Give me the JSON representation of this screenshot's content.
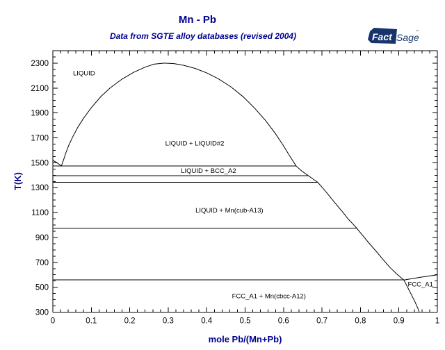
{
  "header": {
    "title": "Mn - Pb",
    "subtitle": "Data from SGTE alloy databases (revised 2004)",
    "logo": {
      "fact": "Fact",
      "sage": "Sage",
      "tm": "″"
    }
  },
  "colors": {
    "heading_navy": "#000090",
    "logo_navy": "#17356d",
    "plot_line": "#000000",
    "tick_text": "#000000",
    "region_text": "#000000"
  },
  "chart_data": {
    "type": "line",
    "title": "Mn - Pb",
    "subtitle": "Data from SGTE alloy databases (revised 2004)",
    "xlabel": "mole Pb/(Mn+Pb)",
    "ylabel": "T(K)",
    "xlim": [
      0,
      1
    ],
    "ylim": [
      300,
      2400
    ],
    "grid": false,
    "legend": "none",
    "x_ticks": {
      "major": [
        0,
        0.1,
        0.2,
        0.3,
        0.4,
        0.5,
        0.6,
        0.7,
        0.8,
        0.9,
        1
      ],
      "labels": [
        "0",
        "0.1",
        "0.2",
        "0.3",
        "0.4",
        "0.5",
        "0.6",
        "0.7",
        "0.8",
        "0.9",
        "1"
      ],
      "minor_step": 0.02
    },
    "y_ticks": {
      "major": [
        300,
        500,
        700,
        900,
        1100,
        1300,
        1500,
        1700,
        1900,
        2100,
        2300
      ],
      "labels": [
        "300",
        "500",
        "700",
        "900",
        "1100",
        "1300",
        "1500",
        "1700",
        "1900",
        "2100",
        "2300"
      ],
      "minor_step": 50
    },
    "isotherms": [
      {
        "name": "monotectic-1473K",
        "T": 1473,
        "x1": 0,
        "x2": 0.633
      },
      {
        "name": "bcc-fcc-1397K",
        "T": 1397,
        "x1": 0,
        "x2": 0.664
      },
      {
        "name": "fcc-cubA13-1343K",
        "T": 1343,
        "x1": 0,
        "x2": 0.689
      },
      {
        "name": "cubA13-cbccA12-975K",
        "T": 975,
        "x1": 0,
        "x2": 0.79
      },
      {
        "name": "eutectic-558K",
        "T": 558,
        "x1": 0,
        "x2": 0.913
      }
    ],
    "boundaries": [
      {
        "name": "mn-liquidus",
        "points": [
          [
            0,
            1519
          ],
          [
            0.008,
            1506
          ],
          [
            0.015,
            1491
          ],
          [
            0.022,
            1473
          ]
        ]
      },
      {
        "name": "miscibility-gap-and-liquidus",
        "points": [
          [
            0.022,
            1473
          ],
          [
            0.028,
            1525
          ],
          [
            0.034,
            1580
          ],
          [
            0.042,
            1645
          ],
          [
            0.052,
            1710
          ],
          [
            0.065,
            1785
          ],
          [
            0.08,
            1858
          ],
          [
            0.1,
            1942
          ],
          [
            0.125,
            2032
          ],
          [
            0.15,
            2103
          ],
          [
            0.18,
            2172
          ],
          [
            0.21,
            2226
          ],
          [
            0.24,
            2268
          ],
          [
            0.263,
            2292
          ],
          [
            0.29,
            2300
          ],
          [
            0.315,
            2296
          ],
          [
            0.34,
            2283
          ],
          [
            0.37,
            2258
          ],
          [
            0.4,
            2222
          ],
          [
            0.43,
            2175
          ],
          [
            0.462,
            2112
          ],
          [
            0.495,
            2030
          ],
          [
            0.525,
            1938
          ],
          [
            0.553,
            1840
          ],
          [
            0.578,
            1738
          ],
          [
            0.598,
            1645
          ],
          [
            0.615,
            1560
          ],
          [
            0.633,
            1473
          ],
          [
            0.648,
            1432
          ],
          [
            0.664,
            1397
          ],
          [
            0.677,
            1368
          ],
          [
            0.689,
            1343
          ],
          [
            0.701,
            1300
          ],
          [
            0.713,
            1256
          ],
          [
            0.727,
            1203
          ],
          [
            0.741,
            1150
          ],
          [
            0.755,
            1100
          ],
          [
            0.768,
            1048
          ],
          [
            0.78,
            1010
          ],
          [
            0.79,
            975
          ],
          [
            0.806,
            915
          ],
          [
            0.823,
            852
          ],
          [
            0.841,
            788
          ],
          [
            0.859,
            722
          ],
          [
            0.877,
            658
          ],
          [
            0.896,
            602
          ],
          [
            0.913,
            558
          ]
        ]
      },
      {
        "name": "pb-liquidus",
        "points": [
          [
            0.913,
            558
          ],
          [
            0.956,
            580
          ],
          [
            1.0,
            600
          ]
        ]
      },
      {
        "name": "fcc-a1-solvus",
        "points": [
          [
            0.913,
            558
          ],
          [
            0.923,
            498
          ],
          [
            0.933,
            438
          ],
          [
            0.942,
            382
          ],
          [
            0.95,
            325
          ],
          [
            0.953,
            300
          ]
        ]
      }
    ],
    "region_labels": [
      {
        "text": "LIQUID",
        "x": 0.081,
        "T": 2222
      },
      {
        "text": "LIQUID + LIQUID#2",
        "x": 0.369,
        "T": 1658
      },
      {
        "text": "LIQUID + BCC_A2",
        "x": 0.405,
        "T": 1437
      },
      {
        "text": "LIQUID + Mn(cub-A13)",
        "x": 0.459,
        "T": 1120
      },
      {
        "text": "FCC_A1 + Mn(cbcc-A12)",
        "x": 0.562,
        "T": 431
      },
      {
        "text": "FCC_A1",
        "x": 0.956,
        "T": 527
      }
    ]
  }
}
